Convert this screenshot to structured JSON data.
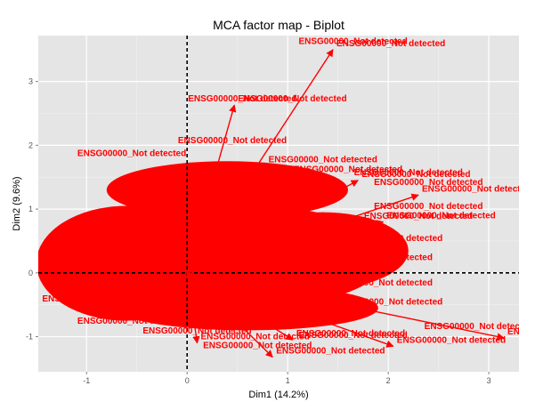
{
  "chart_data": {
    "type": "scatter",
    "title": "MCA factor map - Biplot",
    "xlabel": "Dim1 (14.2%)",
    "ylabel": "Dim2 (9.6%)",
    "xlim": [
      -1.48,
      3.3
    ],
    "ylim": [
      -1.55,
      3.72
    ],
    "xticks": [
      -1,
      0,
      1,
      2,
      3
    ],
    "yticks": [
      -1,
      0,
      1,
      2,
      3
    ],
    "reference_lines": {
      "x": 0,
      "y": 0
    },
    "background": "#e5e5e5",
    "grid": true,
    "label_color": "#ff0000",
    "dense_cloud": {
      "center": [
        0.35,
        0.25
      ],
      "radius_x": 1.65,
      "radius_y": 0.85
    },
    "arrows": [
      {
        "x": 1.45,
        "y": 3.5,
        "label": "ENSG00000_Not detected"
      },
      {
        "x": 0.47,
        "y": 2.63,
        "label": "ENSG00000_Not detected"
      },
      {
        "x": 2.3,
        "y": 1.22,
        "label": "ENSG00000_Not detected"
      },
      {
        "x": 3.15,
        "y": -1.02,
        "label": "ENSG00000_Not detected"
      },
      {
        "x": 2.05,
        "y": -1.15,
        "label": "ENSG00000_Not detected"
      },
      {
        "x": 0.85,
        "y": -1.32,
        "label": "ENSG00000_Not detected"
      },
      {
        "x": 1.05,
        "y": -1.05,
        "label": "ENSG00000_Not detected"
      },
      {
        "x": 0.1,
        "y": -1.1,
        "label": "ENSG00000_Not detected"
      },
      {
        "x": 1.95,
        "y": 0.8,
        "label": "ENSG00000_Not detected"
      },
      {
        "x": 1.7,
        "y": 1.45,
        "label": "ENSG00000_Not detected"
      }
    ],
    "labels": [
      {
        "x": 1.65,
        "y": 3.59,
        "text": "ENSG00000_Not detected"
      },
      {
        "x": 0.55,
        "y": 2.69,
        "text": "ENSG00000_Not detected"
      },
      {
        "x": 0.45,
        "y": 2.03,
        "text": "ENSG00000_Not detected"
      },
      {
        "x": -0.55,
        "y": 1.83,
        "text": "ENSG00000_Not detected"
      },
      {
        "x": 1.35,
        "y": 1.73,
        "text": "ENSG00000_Not detected"
      },
      {
        "x": 1.6,
        "y": 1.58,
        "text": "ENSG00000_Not detected"
      },
      {
        "x": 2.2,
        "y": 1.53,
        "text": "ENSG00000_Not detected"
      },
      {
        "x": 2.4,
        "y": 1.38,
        "text": "ENSG00000_Not detected"
      },
      {
        "x": 2.4,
        "y": 1.0,
        "text": "ENSG00000_Not detected"
      },
      {
        "x": 2.3,
        "y": 0.85,
        "text": "ENSG00000_Not detected"
      },
      {
        "x": 2.0,
        "y": 0.5,
        "text": "ENSG00000_Not detected"
      },
      {
        "x": 1.9,
        "y": 0.2,
        "text": "ENSG00000_Not detected"
      },
      {
        "x": 1.9,
        "y": -0.2,
        "text": "ENSG00000_Not detected"
      },
      {
        "x": 2.0,
        "y": -0.5,
        "text": "ENSG00000_Not detected"
      },
      {
        "x": -0.9,
        "y": -0.45,
        "text": "ENSG00000_Not detected"
      },
      {
        "x": -0.55,
        "y": -0.8,
        "text": "ENSG00000_Not detected"
      },
      {
        "x": 0.1,
        "y": -0.95,
        "text": "ENSG00000_Not detected"
      },
      {
        "x": 1.65,
        "y": -1.02,
        "text": "ENSG00000_Not detected"
      },
      {
        "x": 2.9,
        "y": -0.88,
        "text": "ENSG00000_Not detected"
      },
      {
        "x": 0.7,
        "y": -1.18,
        "text": "ENSG00000_Not detected"
      }
    ]
  }
}
